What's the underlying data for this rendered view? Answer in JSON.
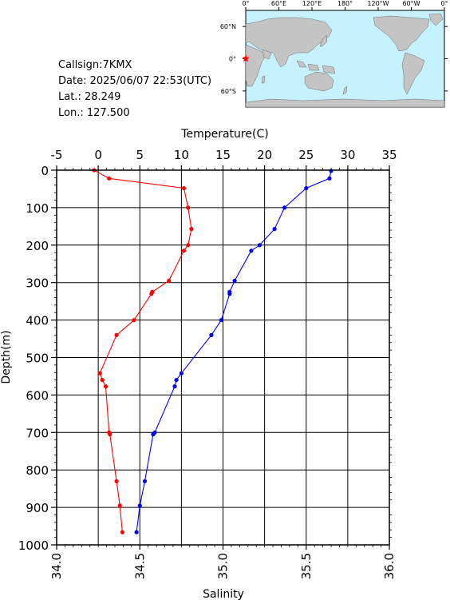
{
  "station": {
    "callsign": "Callsign:7KMX",
    "date": "Date:  2025/06/07 22:53(UTC)",
    "lat": "Lat.:  28.249",
    "lon": "Lon.:  127.500"
  },
  "map": {
    "top_labels": [
      "0°",
      "60°E",
      "120°E",
      "180°",
      "120°W",
      "60°W",
      "0°"
    ],
    "left_labels": [
      "60°N",
      "0°",
      "60°S"
    ],
    "ocean_color": "#c6f2ff",
    "land_color": "#c4c4c4",
    "marker_color": "#ff0000"
  },
  "chart_data": {
    "type": "line",
    "y": {
      "label": "Depth(m)",
      "range": [
        0,
        1000
      ],
      "ticks": [
        0,
        100,
        200,
        300,
        400,
        500,
        600,
        700,
        800,
        900,
        1000
      ],
      "inverted": true
    },
    "temperature_axis": {
      "label": "Temperature(C)",
      "range": [
        -5,
        35
      ],
      "ticks": [
        -5,
        0,
        5,
        10,
        15,
        20,
        25,
        30,
        35
      ],
      "position": "top"
    },
    "salinity_axis": {
      "label": "Salinity",
      "range": [
        34.0,
        36.0
      ],
      "ticks": [
        "34.0",
        "34.5",
        "35.0",
        "35.5",
        "36.0"
      ],
      "position": "bottom"
    },
    "grid": true,
    "series": [
      {
        "variable": "temperature",
        "color": "#ff0000",
        "points": [
          [
            -0.5,
            0
          ],
          [
            1.3,
            22
          ],
          [
            10.3,
            48
          ],
          [
            10.8,
            100
          ],
          [
            11.2,
            157
          ],
          [
            10.8,
            200
          ],
          [
            10.3,
            215
          ],
          [
            8.5,
            295
          ],
          [
            6.5,
            325
          ],
          [
            6.4,
            330
          ],
          [
            4.3,
            400
          ],
          [
            2.2,
            440
          ],
          [
            0.2,
            542
          ],
          [
            0.5,
            560
          ],
          [
            0.9,
            577
          ],
          [
            1.3,
            700
          ],
          [
            1.4,
            705
          ],
          [
            2.2,
            830
          ],
          [
            2.6,
            895
          ],
          [
            2.9,
            966
          ]
        ]
      },
      {
        "variable": "salinity",
        "color": "#0000ff",
        "points": [
          [
            35.65,
            2
          ],
          [
            35.64,
            22
          ],
          [
            35.5,
            48
          ],
          [
            35.37,
            100
          ],
          [
            35.31,
            157
          ],
          [
            35.22,
            200
          ],
          [
            35.17,
            215
          ],
          [
            35.07,
            295
          ],
          [
            35.04,
            325
          ],
          [
            35.04,
            330
          ],
          [
            34.99,
            400
          ],
          [
            34.93,
            440
          ],
          [
            34.75,
            542
          ],
          [
            34.72,
            560
          ],
          [
            34.71,
            577
          ],
          [
            34.59,
            700
          ],
          [
            34.58,
            705
          ],
          [
            34.53,
            830
          ],
          [
            34.5,
            895
          ],
          [
            34.48,
            966
          ]
        ]
      }
    ]
  }
}
